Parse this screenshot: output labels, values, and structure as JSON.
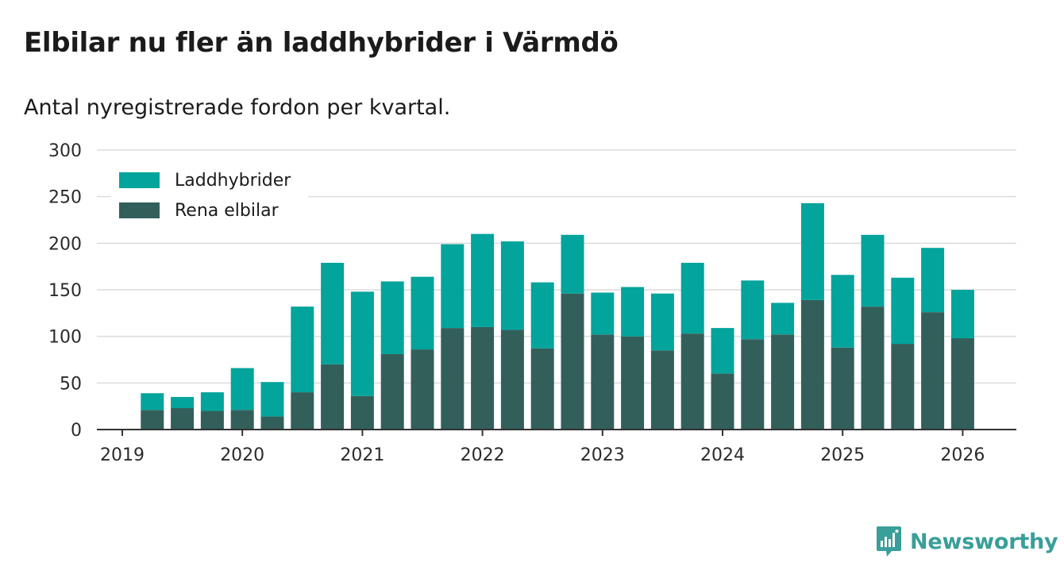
{
  "title": "Elbilar nu fler än laddhybrider i Värmdö",
  "subtitle": "Antal nyregistrerade fordon per kvartal.",
  "brand": {
    "name": "Newsworthy",
    "color": "#3a9e99"
  },
  "colors": {
    "laddhybrider": "#03a49b",
    "elbilar": "#335f5b",
    "grid": "#dcdcdc",
    "axis": "#333333"
  },
  "chart_data": {
    "type": "bar",
    "stacked": true,
    "title": "Elbilar nu fler än laddhybrider i Värmdö",
    "subtitle": "Antal nyregistrerade fordon per kvartal.",
    "xlabel": "",
    "ylabel": "",
    "ylim": [
      0,
      300
    ],
    "yticks": [
      0,
      50,
      100,
      150,
      200,
      250,
      300
    ],
    "xticks": [
      "2019",
      "2020",
      "2021",
      "2022",
      "2023",
      "2024",
      "2025",
      "2026"
    ],
    "legend_position": "top-left",
    "categories": [
      "2019 Q2",
      "2019 Q3",
      "2019 Q4",
      "2020 Q1",
      "2020 Q2",
      "2020 Q3",
      "2020 Q4",
      "2021 Q1",
      "2021 Q2",
      "2021 Q3",
      "2021 Q4",
      "2022 Q1",
      "2022 Q2",
      "2022 Q3",
      "2022 Q4",
      "2023 Q1",
      "2023 Q2",
      "2023 Q3",
      "2023 Q4",
      "2024 Q1",
      "2024 Q2",
      "2024 Q3",
      "2024 Q4",
      "2025 Q1",
      "2025 Q2",
      "2025 Q3",
      "2025 Q4",
      "2026 Q1"
    ],
    "series": [
      {
        "name": "Rena elbilar",
        "values": [
          21,
          23,
          20,
          21,
          14,
          40,
          70,
          36,
          81,
          86,
          109,
          110,
          107,
          87,
          146,
          102,
          100,
          85,
          103,
          60,
          97,
          102,
          139,
          88,
          132,
          92,
          126,
          98
        ]
      },
      {
        "name": "Laddhybrider",
        "values": [
          18,
          12,
          20,
          45,
          37,
          92,
          109,
          112,
          78,
          78,
          90,
          100,
          95,
          71,
          63,
          45,
          53,
          61,
          76,
          49,
          63,
          34,
          104,
          78,
          77,
          71,
          69,
          52
        ]
      }
    ]
  }
}
